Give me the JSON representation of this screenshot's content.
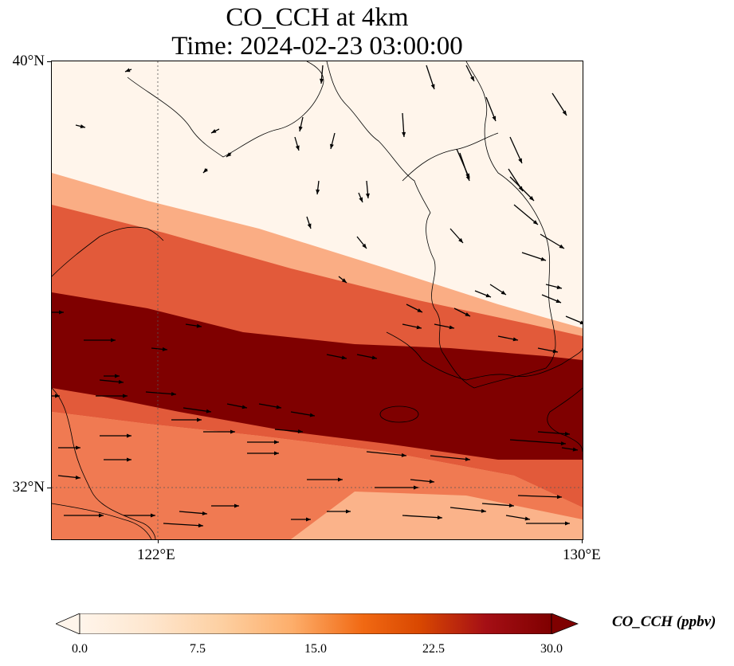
{
  "title": {
    "line1": "CO_CCH at 4km",
    "line2": "Time: 2024-02-23 03:00:00"
  },
  "map": {
    "lon_range": [
      120.4,
      130.0
    ],
    "lat_range": [
      31.0,
      40.0
    ],
    "gridlines": [
      {
        "axis": "lon",
        "value": 122,
        "label": "122°E"
      },
      {
        "axis": "lat",
        "value": 32,
        "label": "32°N"
      }
    ],
    "tick_labels": {
      "lat_top": "40°N",
      "lat_low": "32°N",
      "lon_left": "122°E",
      "lon_right": "130°E"
    },
    "field": "CO_CCH",
    "plume_description": "band of high CO running WNW-ESE across the Yellow Sea and southern Korea"
  },
  "colorbar": {
    "label": "CO_CCH (ppbv)",
    "min": 0.0,
    "max": 30.0,
    "ticks": [
      "0.0",
      "7.5",
      "15.0",
      "22.5",
      "30.0"
    ],
    "colors": [
      "#fff5eb",
      "#fee6ce",
      "#fdd0a2",
      "#fdae6b",
      "#f16913",
      "#d94801",
      "#a50f15",
      "#7f0000"
    ],
    "extend": "both"
  }
}
